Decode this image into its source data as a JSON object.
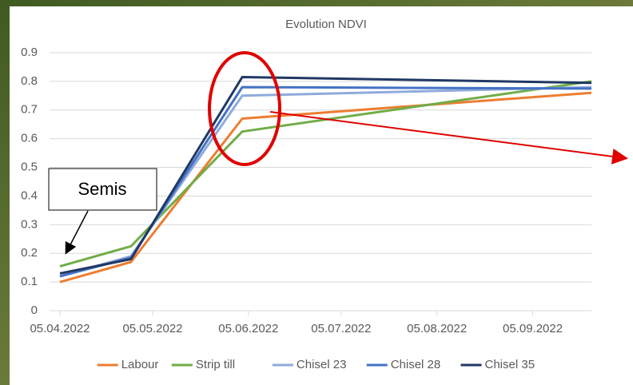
{
  "chart_data": {
    "type": "line",
    "title": "Evolution NDVI",
    "x": [
      "05.04.2022",
      "28.04.2022",
      "03.06.2022",
      "24.09.2022"
    ],
    "xlim": [
      "05.04.2022",
      "24.09.2022"
    ],
    "xticks": [
      "05.04.2022",
      "05.05.2022",
      "05.06.2022",
      "05.07.2022",
      "05.08.2022",
      "05.09.2022"
    ],
    "ylim": [
      0,
      0.9
    ],
    "yticks": [
      0,
      0.1,
      0.2,
      0.3,
      0.4,
      0.5,
      0.6,
      0.7,
      0.8,
      0.9
    ],
    "grid": true,
    "legend": "bottom",
    "series": [
      {
        "name": "Labour",
        "color": "#ed7d31",
        "values": [
          0.1,
          0.17,
          0.67,
          0.76
        ]
      },
      {
        "name": "Strip till",
        "color": "#70ad47",
        "values": [
          0.155,
          0.225,
          0.625,
          0.8
        ]
      },
      {
        "name": "Chisel 23",
        "color": "#8faadc",
        "values": [
          0.12,
          0.19,
          0.75,
          0.78
        ]
      },
      {
        "name": "Chisel 28",
        "color": "#4472c4",
        "values": [
          0.12,
          0.185,
          0.78,
          0.775
        ]
      },
      {
        "name": "Chisel 35",
        "color": "#203864",
        "values": [
          0.13,
          0.18,
          0.815,
          0.795
        ]
      }
    ],
    "annotation": "Semis"
  }
}
